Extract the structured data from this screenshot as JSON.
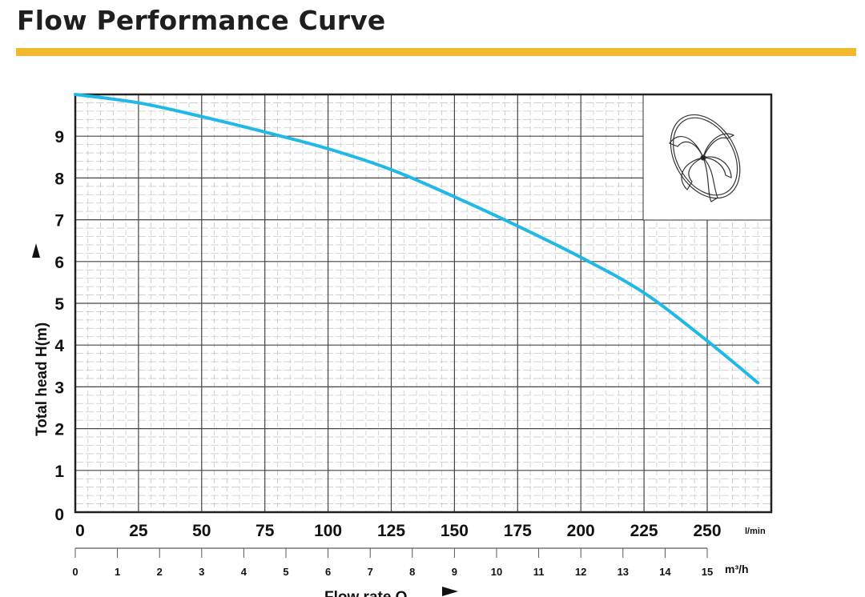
{
  "header": {
    "title": "Flow Performance Curve",
    "accent_color": "#f2b82e"
  },
  "chart_data": {
    "type": "line",
    "title": "Flow Performance Curve",
    "xlabel": "Flow rate Q",
    "ylabel": "Total head H(m)",
    "x_unit": "l/min",
    "x2_unit": "m³/h",
    "xlim": [
      0,
      275
    ],
    "ylim": [
      0,
      10
    ],
    "grid": true,
    "x_ticks": [
      0,
      25,
      50,
      75,
      100,
      125,
      150,
      175,
      200,
      225,
      250
    ],
    "x2_ticks": [
      0,
      1,
      2,
      3,
      4,
      5,
      6,
      7,
      8,
      9,
      10,
      11,
      12,
      13,
      14,
      15
    ],
    "y_ticks": [
      0,
      1,
      2,
      3,
      4,
      5,
      6,
      7,
      8,
      9
    ],
    "series": [
      {
        "color": "#20b9e6",
        "x": [
          0,
          25,
          50,
          75,
          100,
          125,
          150,
          175,
          200,
          225,
          250,
          270
        ],
        "y": [
          10.0,
          9.8,
          9.47,
          9.1,
          8.7,
          8.2,
          7.55,
          6.85,
          6.1,
          5.25,
          4.1,
          3.1
        ]
      }
    ],
    "inset_image": "impeller-icon"
  }
}
